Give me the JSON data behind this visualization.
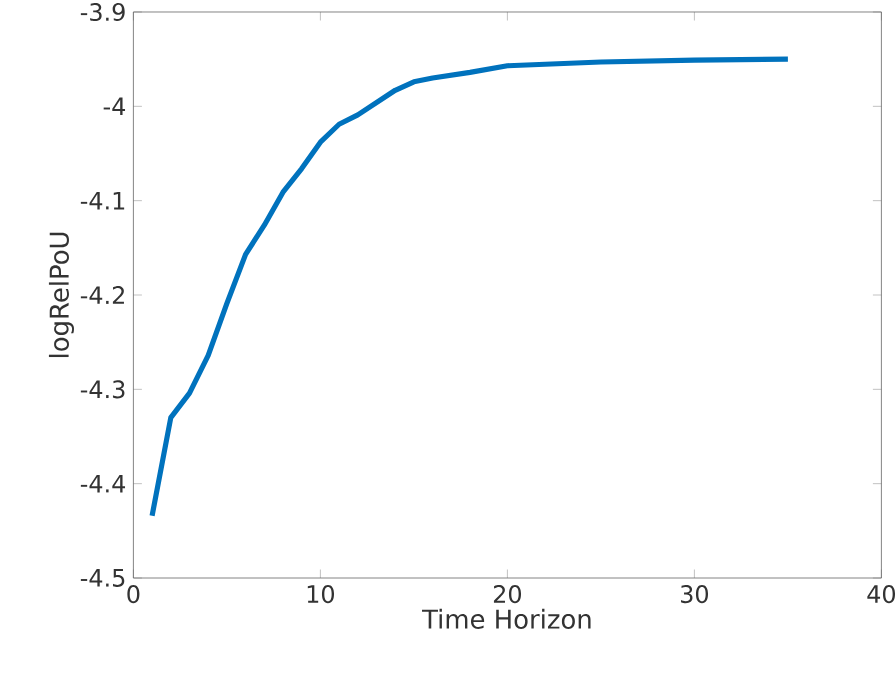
{
  "chart_data": {
    "type": "line",
    "xlabel": "Time Horizon",
    "ylabel": "logRelPoU",
    "x": [
      1,
      2,
      3,
      4,
      5,
      6,
      7,
      8,
      9,
      10,
      11,
      12,
      13,
      14,
      15,
      16,
      18,
      20,
      25,
      30,
      35
    ],
    "series": [
      {
        "color": "#0072bd",
        "values": [
          -4.434,
          -4.33,
          -4.304,
          -4.264,
          -4.209,
          -4.157,
          -4.126,
          -4.091,
          -4.066,
          -4.038,
          -4.019,
          -4.009,
          -3.996,
          -3.983,
          -3.974,
          -3.97,
          -3.964,
          -3.957,
          -3.953,
          -3.951,
          -3.95
        ]
      }
    ],
    "xlim": [
      0,
      40
    ],
    "xticks": [
      0,
      10,
      20,
      30,
      40
    ],
    "ylim": [
      -4.5,
      -3.9
    ],
    "yticks": [
      -4.5,
      -4.4,
      -4.3,
      -4.2,
      -4.1,
      -4,
      -3.9
    ],
    "marker": "none",
    "line_style": "solid"
  }
}
